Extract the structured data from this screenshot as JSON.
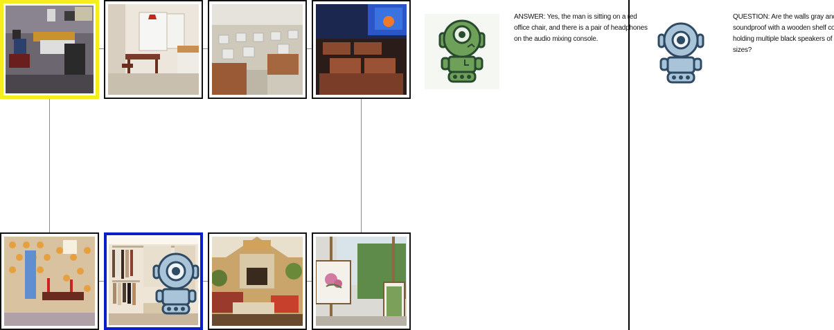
{
  "grid": {
    "top_row": [
      {
        "name": "audio-studio",
        "selected": "yellow"
      },
      {
        "name": "dining-room"
      },
      {
        "name": "computer-lab"
      },
      {
        "name": "home-theater"
      }
    ],
    "bottom_row": [
      {
        "name": "bathroom"
      },
      {
        "name": "walk-in-closet",
        "selected": "blue",
        "has_agent": true
      },
      {
        "name": "living-room"
      },
      {
        "name": "art-studio"
      }
    ]
  },
  "chat": {
    "answer_text": "ANSWER: Yes, the man is sitting on a red office chair, and there is a pair of headphones on the audio mixing console.",
    "question_text": "QUESTION: Are the walls gray and soundproof with a wooden shelf console holding multiple black speakers of various sizes?"
  },
  "colors": {
    "selected_yellow": "#f4ef1c",
    "selected_blue": "#0a1fc8",
    "answerer_robot": "#6fa05a",
    "questioner_robot": "#a9c3d8"
  }
}
